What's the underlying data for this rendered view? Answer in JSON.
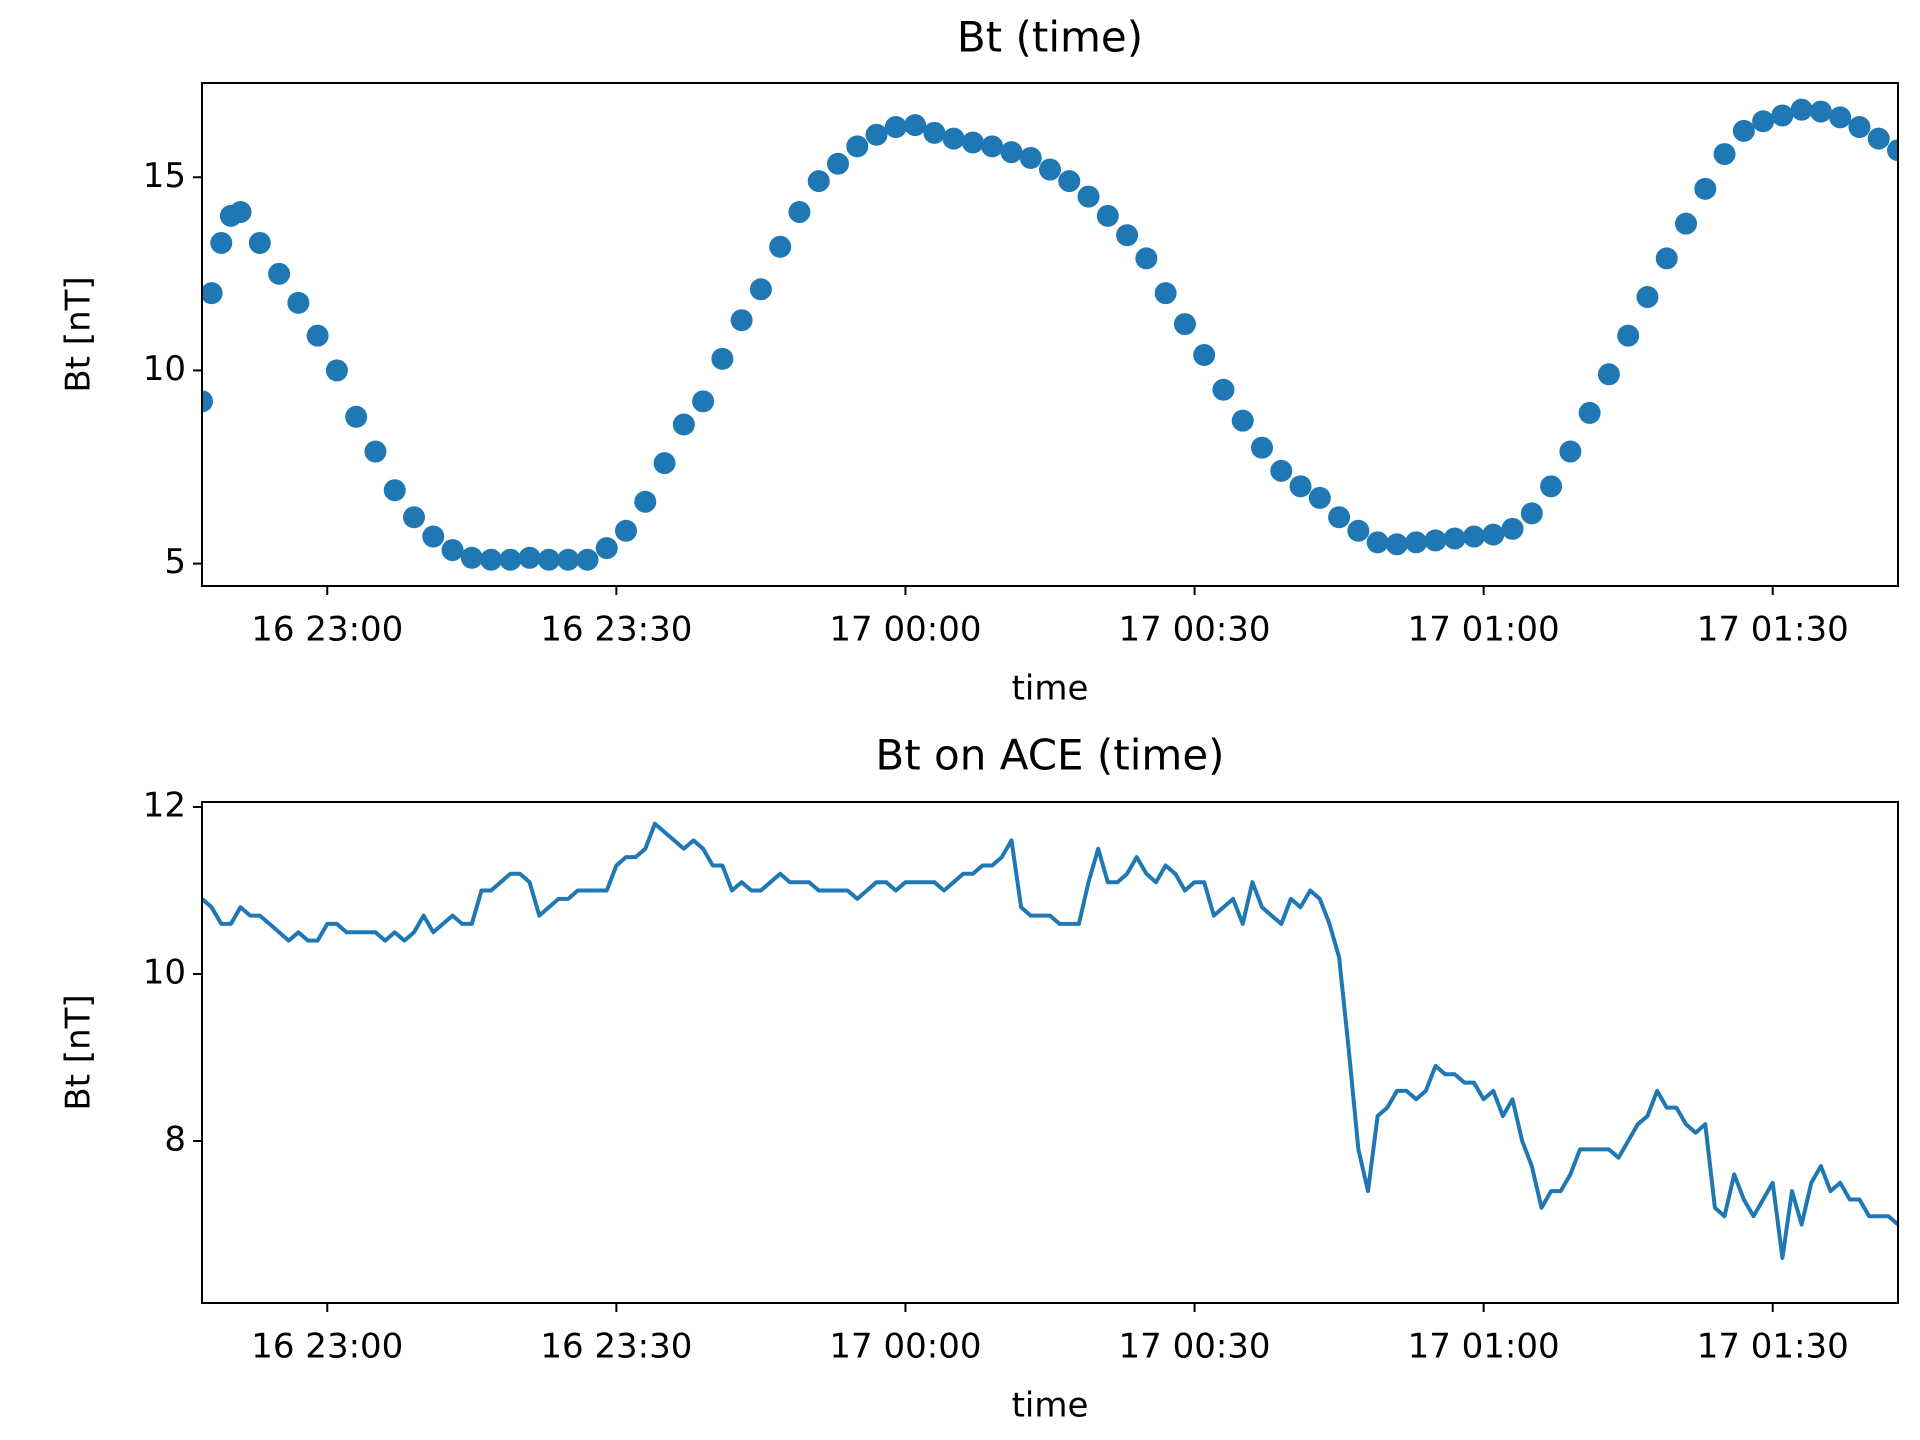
{
  "chart_data": [
    {
      "type": "scatter",
      "title": "Bt (time)",
      "xlabel": "time",
      "ylabel": "Bt [nT]",
      "color": "#1f77b4",
      "xlim": [
        "16 22:47",
        "17 01:43"
      ],
      "ylim": [
        4.42,
        17.44
      ],
      "yticks": [
        5,
        10,
        15
      ],
      "xticks": [
        "16 23:00",
        "16 23:30",
        "17 00:00",
        "17 00:30",
        "17 01:00",
        "17 01:30"
      ],
      "x": [
        "16 22:47",
        "16 22:48",
        "16 22:49",
        "16 22:50",
        "16 22:51",
        "16 22:53",
        "16 22:55",
        "16 22:57",
        "16 22:59",
        "16 23:01",
        "16 23:03",
        "16 23:05",
        "16 23:07",
        "16 23:09",
        "16 23:11",
        "16 23:13",
        "16 23:15",
        "16 23:17",
        "16 23:19",
        "16 23:21",
        "16 23:23",
        "16 23:25",
        "16 23:27",
        "16 23:29",
        "16 23:31",
        "16 23:33",
        "16 23:35",
        "16 23:37",
        "16 23:39",
        "16 23:41",
        "16 23:43",
        "16 23:45",
        "16 23:47",
        "16 23:49",
        "16 23:51",
        "16 23:53",
        "16 23:55",
        "16 23:57",
        "16 23:59",
        "17 00:01",
        "17 00:03",
        "17 00:05",
        "17 00:07",
        "17 00:09",
        "17 00:11",
        "17 00:13",
        "17 00:15",
        "17 00:17",
        "17 00:19",
        "17 00:21",
        "17 00:23",
        "17 00:25",
        "17 00:27",
        "17 00:29",
        "17 00:31",
        "17 00:33",
        "17 00:35",
        "17 00:37",
        "17 00:39",
        "17 00:41",
        "17 00:43",
        "17 00:45",
        "17 00:47",
        "17 00:49",
        "17 00:51",
        "17 00:53",
        "17 00:55",
        "17 00:57",
        "17 00:59",
        "17 01:01",
        "17 01:03",
        "17 01:05",
        "17 01:07",
        "17 01:09",
        "17 01:11",
        "17 01:13",
        "17 01:15",
        "17 01:17",
        "17 01:19",
        "17 01:21",
        "17 01:23",
        "17 01:25",
        "17 01:27",
        "17 01:29",
        "17 01:31",
        "17 01:33",
        "17 01:35",
        "17 01:37",
        "17 01:39",
        "17 01:41",
        "17 01:43"
      ],
      "values": [
        9.2,
        12.0,
        13.3,
        14.0,
        14.1,
        13.3,
        12.5,
        11.75,
        10.9,
        10.0,
        8.8,
        7.9,
        6.9,
        6.2,
        5.7,
        5.35,
        5.15,
        5.1,
        5.1,
        5.15,
        5.1,
        5.1,
        5.1,
        5.4,
        5.85,
        6.6,
        7.6,
        8.6,
        9.2,
        10.3,
        11.3,
        12.1,
        13.2,
        14.1,
        14.9,
        15.35,
        15.8,
        16.1,
        16.3,
        16.35,
        16.15,
        16.0,
        15.9,
        15.8,
        15.65,
        15.5,
        15.2,
        14.9,
        14.5,
        14.0,
        13.5,
        12.9,
        12.0,
        11.2,
        10.4,
        9.5,
        8.7,
        8.0,
        7.4,
        7.0,
        6.7,
        6.2,
        5.85,
        5.55,
        5.5,
        5.55,
        5.6,
        5.65,
        5.7,
        5.75,
        5.9,
        6.3,
        7.0,
        7.9,
        8.9,
        9.9,
        10.9,
        11.9,
        12.9,
        13.8,
        14.7,
        15.6,
        16.2,
        16.45,
        16.6,
        16.75,
        16.7,
        16.55,
        16.3,
        16.0,
        15.7
      ]
    },
    {
      "type": "line",
      "title": "Bt on ACE (time)",
      "xlabel": "time",
      "ylabel": "Bt [nT]",
      "color": "#1f77b4",
      "xlim": [
        "16 22:47",
        "17 01:43"
      ],
      "ylim": [
        6.06,
        12.06
      ],
      "yticks": [
        8,
        10,
        12
      ],
      "xticks": [
        "16 23:00",
        "16 23:30",
        "17 00:00",
        "17 00:30",
        "17 01:00",
        "17 01:30"
      ],
      "x": [
        "16 22:47",
        "16 22:48",
        "16 22:49",
        "16 22:50",
        "16 22:51",
        "16 22:52",
        "16 22:53",
        "16 22:54",
        "16 22:55",
        "16 22:56",
        "16 22:57",
        "16 22:58",
        "16 22:59",
        "16 23:00",
        "16 23:01",
        "16 23:02",
        "16 23:03",
        "16 23:04",
        "16 23:05",
        "16 23:06",
        "16 23:07",
        "16 23:08",
        "16 23:09",
        "16 23:10",
        "16 23:11",
        "16 23:12",
        "16 23:13",
        "16 23:14",
        "16 23:15",
        "16 23:16",
        "16 23:17",
        "16 23:18",
        "16 23:19",
        "16 23:20",
        "16 23:21",
        "16 23:22",
        "16 23:23",
        "16 23:24",
        "16 23:25",
        "16 23:26",
        "16 23:27",
        "16 23:28",
        "16 23:29",
        "16 23:30",
        "16 23:31",
        "16 23:32",
        "16 23:33",
        "16 23:34",
        "16 23:35",
        "16 23:36",
        "16 23:37",
        "16 23:38",
        "16 23:39",
        "16 23:40",
        "16 23:41",
        "16 23:42",
        "16 23:43",
        "16 23:44",
        "16 23:45",
        "16 23:46",
        "16 23:47",
        "16 23:48",
        "16 23:49",
        "16 23:50",
        "16 23:51",
        "16 23:52",
        "16 23:53",
        "16 23:54",
        "16 23:55",
        "16 23:56",
        "16 23:57",
        "16 23:58",
        "16 23:59",
        "17 00:00",
        "17 00:01",
        "17 00:02",
        "17 00:03",
        "17 00:04",
        "17 00:05",
        "17 00:06",
        "17 00:07",
        "17 00:08",
        "17 00:09",
        "17 00:10",
        "17 00:11",
        "17 00:12",
        "17 00:13",
        "17 00:14",
        "17 00:15",
        "17 00:16",
        "17 00:17",
        "17 00:18",
        "17 00:19",
        "17 00:20",
        "17 00:21",
        "17 00:22",
        "17 00:23",
        "17 00:24",
        "17 00:25",
        "17 00:26",
        "17 00:27",
        "17 00:28",
        "17 00:29",
        "17 00:30",
        "17 00:31",
        "17 00:32",
        "17 00:33",
        "17 00:34",
        "17 00:35",
        "17 00:36",
        "17 00:37",
        "17 00:38",
        "17 00:39",
        "17 00:40",
        "17 00:41",
        "17 00:42",
        "17 00:43",
        "17 00:44",
        "17 00:45",
        "17 00:46",
        "17 00:47",
        "17 00:48",
        "17 00:49",
        "17 00:50",
        "17 00:51",
        "17 00:52",
        "17 00:53",
        "17 00:54",
        "17 00:55",
        "17 00:56",
        "17 00:57",
        "17 00:58",
        "17 00:59",
        "17 01:00",
        "17 01:01",
        "17 01:02",
        "17 01:03",
        "17 01:04",
        "17 01:05",
        "17 01:06",
        "17 01:07",
        "17 01:08",
        "17 01:09",
        "17 01:10",
        "17 01:11",
        "17 01:12",
        "17 01:13",
        "17 01:14",
        "17 01:15",
        "17 01:16",
        "17 01:17",
        "17 01:18",
        "17 01:19",
        "17 01:20",
        "17 01:21",
        "17 01:22",
        "17 01:23",
        "17 01:24",
        "17 01:25",
        "17 01:26",
        "17 01:27",
        "17 01:28",
        "17 01:29",
        "17 01:30",
        "17 01:31",
        "17 01:32",
        "17 01:33",
        "17 01:34",
        "17 01:35",
        "17 01:36",
        "17 01:37",
        "17 01:38",
        "17 01:39",
        "17 01:40",
        "17 01:41",
        "17 01:42",
        "17 01:43"
      ],
      "values": [
        10.9,
        10.8,
        10.6,
        10.6,
        10.8,
        10.7,
        10.7,
        10.6,
        10.5,
        10.4,
        10.5,
        10.4,
        10.4,
        10.6,
        10.6,
        10.5,
        10.5,
        10.5,
        10.5,
        10.4,
        10.5,
        10.4,
        10.5,
        10.7,
        10.5,
        10.6,
        10.7,
        10.6,
        10.6,
        11.0,
        11.0,
        11.1,
        11.2,
        11.2,
        11.1,
        10.7,
        10.8,
        10.9,
        10.9,
        11.0,
        11.0,
        11.0,
        11.0,
        11.3,
        11.4,
        11.4,
        11.5,
        11.8,
        11.7,
        11.6,
        11.5,
        11.6,
        11.5,
        11.3,
        11.3,
        11.0,
        11.1,
        11.0,
        11.0,
        11.1,
        11.2,
        11.1,
        11.1,
        11.1,
        11.0,
        11.0,
        11.0,
        11.0,
        10.9,
        11.0,
        11.1,
        11.1,
        11.0,
        11.1,
        11.1,
        11.1,
        11.1,
        11.0,
        11.1,
        11.2,
        11.2,
        11.3,
        11.3,
        11.4,
        11.6,
        10.8,
        10.7,
        10.7,
        10.7,
        10.6,
        10.6,
        10.6,
        11.1,
        11.5,
        11.1,
        11.1,
        11.2,
        11.4,
        11.2,
        11.1,
        11.3,
        11.2,
        11.0,
        11.1,
        11.1,
        10.7,
        10.8,
        10.9,
        10.6,
        11.1,
        10.8,
        10.7,
        10.6,
        10.9,
        10.8,
        11.0,
        10.9,
        10.6,
        10.2,
        9.1,
        7.9,
        7.4,
        8.3,
        8.4,
        8.6,
        8.6,
        8.5,
        8.6,
        8.9,
        8.8,
        8.8,
        8.7,
        8.7,
        8.5,
        8.6,
        8.3,
        8.5,
        8.0,
        7.7,
        7.2,
        7.4,
        7.4,
        7.6,
        7.9,
        7.9,
        7.9,
        7.9,
        7.8,
        8.0,
        8.2,
        8.3,
        8.6,
        8.4,
        8.4,
        8.2,
        8.1,
        8.2,
        7.2,
        7.1,
        7.6,
        7.3,
        7.1,
        7.3,
        7.5,
        6.6,
        7.4,
        7.0,
        7.5,
        7.7,
        7.4,
        7.5,
        7.3,
        7.3,
        7.1,
        7.1,
        7.1,
        7.0
      ]
    }
  ]
}
